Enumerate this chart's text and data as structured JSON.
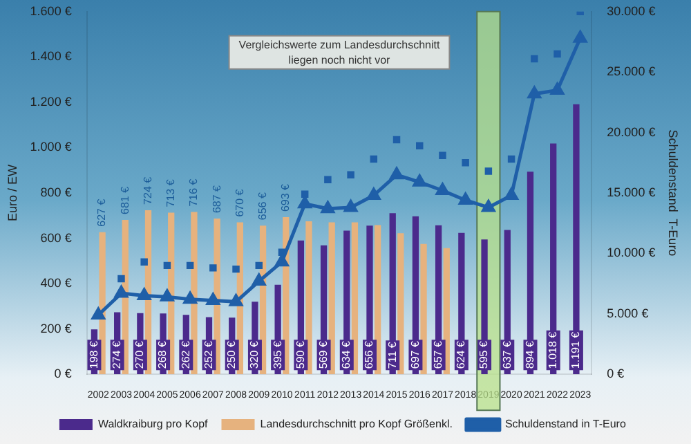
{
  "chart_data": {
    "type": "bar",
    "categories": [
      "2002",
      "2003",
      "2004",
      "2005",
      "2006",
      "2007",
      "2008",
      "2009",
      "2010",
      "2011",
      "2012",
      "2013",
      "2014",
      "2015",
      "2016",
      "2017",
      "2018",
      "2019",
      "2020",
      "2021",
      "2022",
      "2023"
    ],
    "ylabel": "Euro / EW",
    "y2label": "Schuldenstand  T-Euro",
    "ylim": [
      0,
      1600
    ],
    "yticks": [
      {
        "value": 0,
        "label": "0 €"
      },
      {
        "value": 200,
        "label": "200 €"
      },
      {
        "value": 400,
        "label": "400 €"
      },
      {
        "value": 600,
        "label": "600 €"
      },
      {
        "value": 800,
        "label": "800 €"
      },
      {
        "value": 1000,
        "label": "1.000 €"
      },
      {
        "value": 1200,
        "label": "1.200 €"
      },
      {
        "value": 1400,
        "label": "1.400 €"
      },
      {
        "value": 1600,
        "label": "1.600 €"
      }
    ],
    "y2lim": [
      0,
      30000
    ],
    "y2ticks": [
      {
        "value": 0,
        "label": "0 €"
      },
      {
        "value": 5000,
        "label": "5.000 €"
      },
      {
        "value": 10000,
        "label": "10.000 €"
      },
      {
        "value": 15000,
        "label": "15.000 €"
      },
      {
        "value": 20000,
        "label": "20.000 €"
      },
      {
        "value": 25000,
        "label": "25.000 €"
      },
      {
        "value": 30000,
        "label": "30.000 €"
      }
    ],
    "grid": false,
    "legend": "bottom",
    "bands": [
      {
        "axis": "x",
        "from": "2019",
        "to": "2019",
        "color": "#b8e08a"
      }
    ],
    "annotations": [
      "Vergleichswerte zum Landesdurchschnitt liegen noch nicht vor"
    ],
    "series": [
      {
        "name": "Waldkraiburg pro Kopf",
        "color": "#4b2a8c",
        "values": [
          198,
          274,
          270,
          268,
          262,
          252,
          250,
          320,
          395,
          590,
          569,
          634,
          656,
          711,
          697,
          657,
          624,
          595,
          637,
          894,
          1018,
          1191
        ],
        "value_labels": [
          "198 €",
          "274 €",
          "270 €",
          "268 €",
          "262 €",
          "252 €",
          "250 €",
          "320 €",
          "395 €",
          "590 €",
          "569 €",
          "634 €",
          "656 €",
          "711 €",
          "697 €",
          "657 €",
          "624 €",
          "595 €",
          "637 €",
          "894 €",
          "1.018 €",
          "1.191 €"
        ]
      },
      {
        "name": "Landesdurchschnitt pro Kopf Größenkl.",
        "color": "#e6b27e",
        "values": [
          627,
          681,
          724,
          713,
          716,
          687,
          670,
          656,
          693,
          675,
          670,
          670,
          658,
          622,
          575,
          557,
          null,
          null,
          null,
          null,
          null,
          null
        ],
        "value_labels": [
          "627 €",
          "681 €",
          "724 €",
          "713 €",
          "716 €",
          "687 €",
          "670 €",
          "656 €",
          "693 €",
          null,
          null,
          null,
          null,
          null,
          null,
          null,
          null,
          null,
          null,
          null,
          null,
          null
        ]
      },
      {
        "name": "Schuldenstand in T-Euro",
        "type": "line",
        "axis": "y2",
        "color": "#1f5fa8",
        "marker": "triangle",
        "values": [
          4900,
          6700,
          6500,
          6400,
          6200,
          6100,
          6000,
          7700,
          9300,
          14100,
          13700,
          13800,
          14800,
          16500,
          15900,
          15200,
          14400,
          13800,
          14800,
          23200,
          23500,
          27800
        ]
      },
      {
        "type": "scatter",
        "axis": "y2",
        "color": "#1f5fa8",
        "marker": "square",
        "values": [
          null,
          7900,
          9300,
          9000,
          9000,
          8800,
          8700,
          9000,
          10100,
          14900,
          16100,
          16500,
          17800,
          19400,
          18900,
          18100,
          17500,
          16800,
          17800,
          26100,
          26500,
          30000
        ]
      }
    ]
  }
}
